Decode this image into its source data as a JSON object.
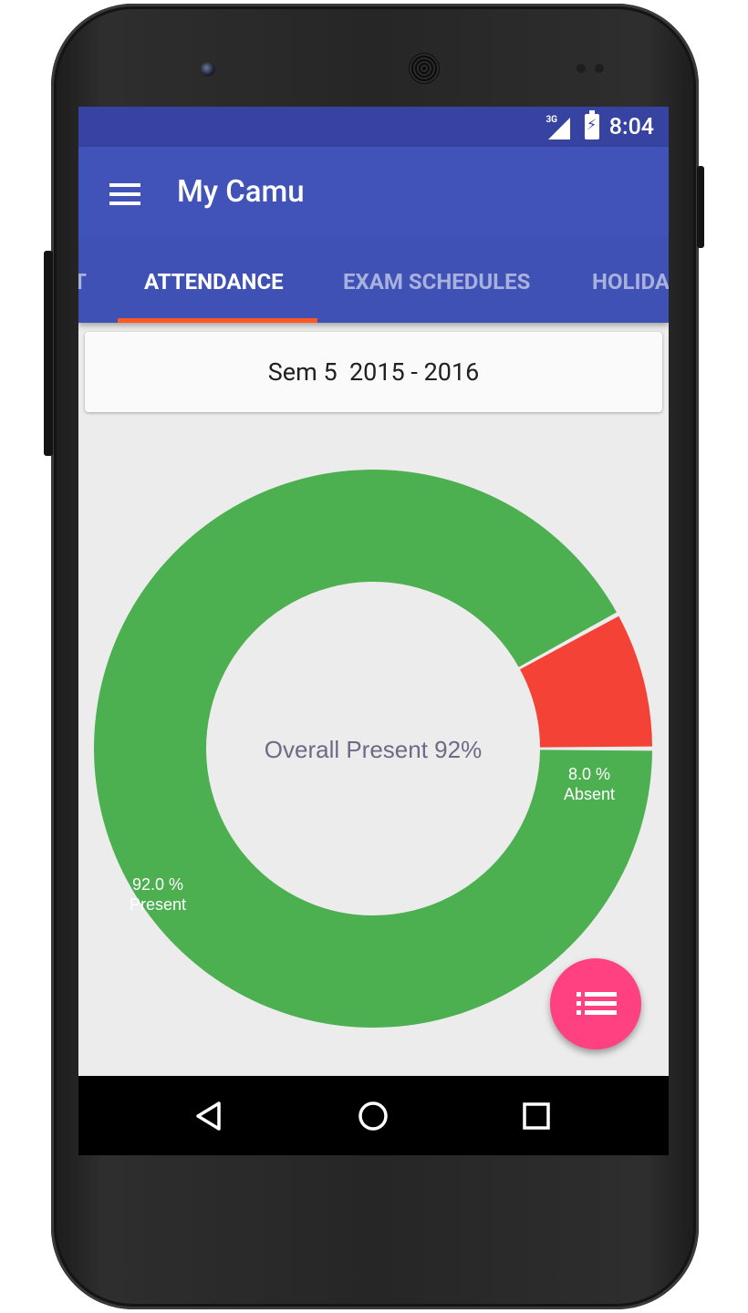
{
  "status_bar": {
    "network": "3G",
    "time": "8:04",
    "icons": [
      "signal-icon",
      "battery-charging-icon"
    ]
  },
  "app_bar": {
    "title": "My Camu",
    "menu_icon": "hamburger-menu-icon"
  },
  "tabs": [
    {
      "label": "T",
      "active": false
    },
    {
      "label": "ATTENDANCE",
      "active": true
    },
    {
      "label": "EXAM SCHEDULES",
      "active": false
    },
    {
      "label": "HOLIDA",
      "active": false
    }
  ],
  "semester": {
    "label": "Sem 5  2015 - 2016"
  },
  "chart_data": {
    "type": "pie",
    "donut": true,
    "categories": [
      "Present",
      "Absent"
    ],
    "values": [
      92.0,
      8.0
    ],
    "slice_labels": [
      {
        "percent": "92.0 %",
        "name": "Present"
      },
      {
        "percent": "8.0 %",
        "name": "Absent"
      }
    ],
    "colors": [
      "#4caf50",
      "#f44336"
    ],
    "center_text": "Overall Present 92%"
  },
  "fab": {
    "icon": "list-icon",
    "color": "#ff4081"
  },
  "nav_bar": {
    "icons": [
      "back-icon",
      "home-icon",
      "recents-icon"
    ]
  },
  "colors": {
    "status_bar": "#3643a0",
    "primary": "#3f51b5",
    "tab_indicator": "#ff5722",
    "background": "#ececec"
  }
}
